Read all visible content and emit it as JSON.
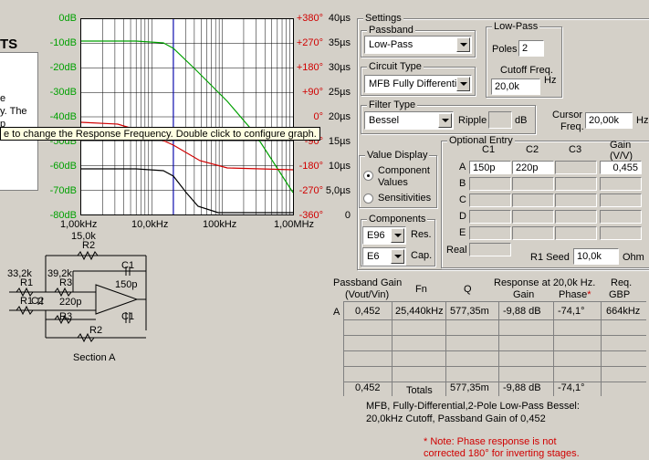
{
  "left_panel": {
    "title_fragment": "TS",
    "text_fragments": [
      "e",
      "y. The",
      "p"
    ]
  },
  "tooltip": "e to change the Response Frequency.  Double click to configure graph.",
  "graph": {
    "gain_ticks": [
      "0dB",
      "-10dB",
      "-20dB",
      "-30dB",
      "-40dB",
      "-50dB",
      "-60dB",
      "-70dB",
      "-80dB"
    ],
    "phase_ticks": [
      "+380°",
      "+270°",
      "+180°",
      "+90°",
      "0°",
      "-90°",
      "-180°",
      "-270°",
      "-360°"
    ],
    "delay_ticks": [
      "40µs",
      "35µs",
      "30µs",
      "25µs",
      "20µs",
      "15µs",
      "10µs",
      "5,0µs",
      "0"
    ],
    "freq_ticks": [
      "1,00kHz",
      "10,0kHz",
      "100kHz",
      "1,00MHz"
    ],
    "colors": {
      "gain": "#00a000",
      "phase": "#d00000",
      "delay": "#000000",
      "cursor": "#0000c0"
    }
  },
  "schematic": {
    "labels": [
      "15,0k",
      "R2",
      "33,2k",
      "R1",
      "39,2k",
      "R3",
      "C1",
      "150p",
      "R1",
      "C2",
      "220p",
      "R3",
      "C1",
      "R2",
      "Section A"
    ]
  },
  "settings": {
    "title": "Settings",
    "passband": {
      "label": "Passband",
      "value": "Low-Pass"
    },
    "circuit_type": {
      "label": "Circuit Type",
      "value": "MFB Fully Differenti"
    },
    "filter_type": {
      "label": "Filter Type",
      "value": "Bessel",
      "ripple_label": "Ripple",
      "ripple_value": "",
      "ripple_unit": "dB"
    },
    "low_pass": {
      "label": "Low-Pass",
      "poles_label": "Poles",
      "poles_value": "2",
      "cutoff_label1": "Cutoff Freq.",
      "cutoff_value": "20,0k",
      "cutoff_unit": "Hz"
    },
    "cursor": {
      "label1": "Cursor",
      "label2": "Freq.",
      "value": "20,00k",
      "unit": "Hz"
    },
    "value_display": {
      "label": "Value Display",
      "option1": "Component",
      "option1b": "Values",
      "option2": "Sensitivities"
    },
    "components": {
      "label": "Components",
      "res_value": "E96",
      "res_label": "Res.",
      "cap_value": "E6",
      "cap_label": "Cap."
    },
    "optional_entry": {
      "label": "Optional Entry",
      "col_c1": "C1",
      "col_c2": "C2",
      "col_c3": "C3",
      "col_gain1": "Gain",
      "col_gain2": "(V/V)",
      "rows": [
        "A",
        "B",
        "C",
        "D",
        "E"
      ],
      "a_c1": "150p",
      "a_c2": "220p",
      "a_gain": "0,455",
      "real_label": "Real",
      "seed_label": "R1 Seed",
      "seed_value": "10,0k",
      "seed_unit": "Ohm"
    }
  },
  "results": {
    "h_passband1": "Passband Gain",
    "h_passband2": "(Vout/Vin)",
    "h_fn": "Fn",
    "h_q": "Q",
    "h_resp": "Response at 20,0k Hz.",
    "h_gain": "Gain",
    "h_phase": "Phase",
    "h_star": "*",
    "h_req1": "Req.",
    "h_req2": "GBP",
    "row_label": "A",
    "row": {
      "gain": "0,452",
      "fn": "25,440kHz",
      "q": "577,35m",
      "resp_gain": "-9,88 dB",
      "phase": "-74,1°",
      "gbp": "664kHz"
    },
    "totals_label": "Totals",
    "totals": {
      "gain": "0,452",
      "q": "577,35m",
      "resp_gain": "-9,88 dB",
      "phase": "-74,1°"
    },
    "summary1": "MFB, Fully-Differential,2-Pole Low-Pass Bessel:",
    "summary2": "20,0kHz Cutoff, Passband Gain of 0,452",
    "note1": "* Note: Phase response is not",
    "note2": "corrected 180° for inverting stages."
  }
}
